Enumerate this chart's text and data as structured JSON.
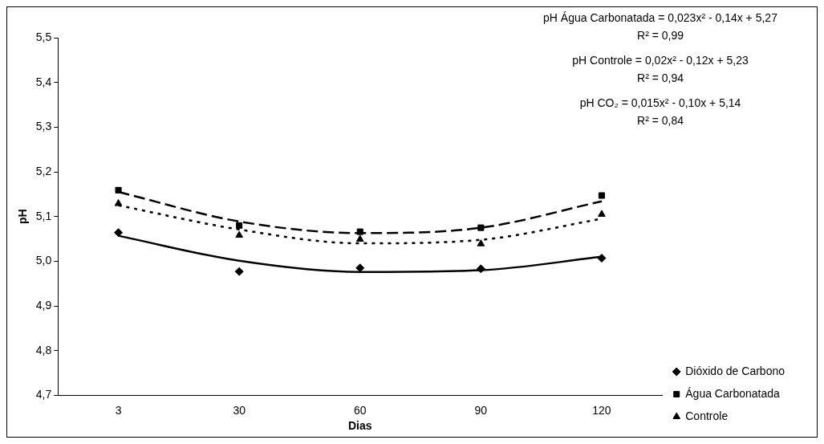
{
  "chart_data": {
    "type": "line",
    "xlabel": "Dias",
    "ylabel": "pH",
    "categories": [
      "3",
      "30",
      "60",
      "90",
      "120"
    ],
    "series": [
      {
        "name": "Dióxido de Carbono",
        "type": "scatter",
        "color": "#000000",
        "marker": "diamond",
        "values": [
          5.064,
          4.977,
          4.985,
          4.983,
          5.007
        ]
      },
      {
        "name": "Água Carbonatada",
        "type": "scatter",
        "color": "#000000",
        "marker": "square",
        "values": [
          5.159,
          5.08,
          5.066,
          5.075,
          5.147
        ]
      },
      {
        "name": "Controle",
        "type": "scatter",
        "color": "#000000",
        "marker": "triangle",
        "values": [
          5.129,
          5.058,
          5.049,
          5.039,
          5.105
        ]
      },
      {
        "type": "line",
        "color": "#000000",
        "marker": "none",
        "line_style": "solid",
        "values": [
          5.057,
          5.001,
          4.976,
          4.98,
          5.01
        ]
      },
      {
        "type": "line",
        "color": "#000000",
        "marker": "none",
        "line_style": "dashed",
        "values": [
          5.155,
          5.089,
          5.063,
          5.075,
          5.134
        ]
      },
      {
        "type": "line",
        "color": "#000000",
        "marker": "none",
        "line_style": "dotted",
        "values": [
          5.125,
          5.071,
          5.04,
          5.048,
          5.095
        ]
      }
    ],
    "ylim": [
      4.7,
      5.5
    ],
    "yticks": [
      {
        "value": 4.7,
        "label": "4,7"
      },
      {
        "value": 4.8,
        "label": "4,8"
      },
      {
        "value": 4.9,
        "label": "4,9"
      },
      {
        "value": 5.0,
        "label": "5,0"
      },
      {
        "value": 5.1,
        "label": "5,1"
      },
      {
        "value": 5.2,
        "label": "5,2"
      },
      {
        "value": 5.3,
        "label": "5,3"
      },
      {
        "value": 5.4,
        "label": "5,4"
      },
      {
        "value": 5.5,
        "label": "5,5"
      }
    ],
    "grid": false,
    "legend": "bottom right",
    "annotations": [
      "pH Água Carbonatada = 0,023x² - 0,14x + 5,27",
      "R² = 0,99",
      "pH Controle = 0,02x² - 0,12x + 5,23",
      "R² = 0,94",
      "pH CO₂ = 0,015x² - 0,10x + 5,14",
      "R² = 0,84"
    ]
  }
}
